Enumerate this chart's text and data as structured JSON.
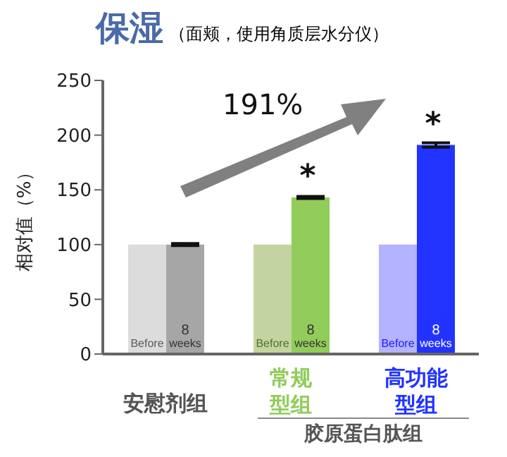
{
  "chart_data": {
    "type": "bar",
    "title": "保湿",
    "subtitle": "（面颊，使用角质层水分仪）",
    "ylabel": "相对值（%）",
    "categories": [
      "安慰剂组",
      "常规型组",
      "高功能型组"
    ],
    "series": [
      {
        "name": "Before",
        "colors": [
          "#dcdcdc",
          "#c4d4a0",
          "#b3b3ff"
        ],
        "values": [
          100,
          100,
          100
        ]
      },
      {
        "name": "8 weeks",
        "colors": [
          "#a6a6a6",
          "#92cc5a",
          "#2233ff"
        ],
        "values": [
          100,
          143,
          191
        ],
        "errors": [
          1,
          1,
          2
        ]
      }
    ],
    "ylim": [
      0,
      250
    ],
    "yticks": [
      0,
      50,
      100,
      150,
      200,
      250
    ],
    "grid": false,
    "legend": false,
    "annotations": [
      "191%",
      {
        "text": "*",
        "x": "常规型组",
        "y": 143
      },
      {
        "text": "*",
        "x": "高功能型组",
        "y": 191
      },
      "胶原蛋白肽组"
    ]
  }
}
